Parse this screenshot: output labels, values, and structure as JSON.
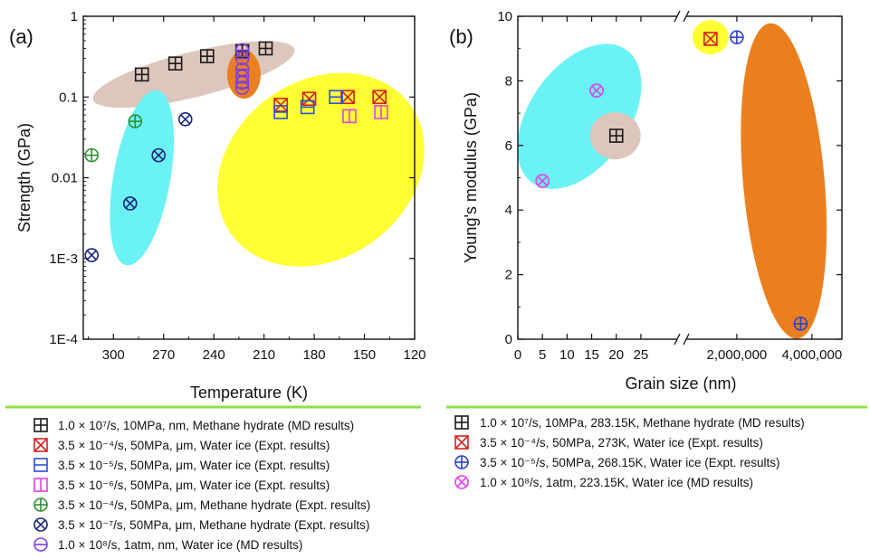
{
  "legend_a": [
    {
      "symbol": "box-plus",
      "color": "#1a1a1a",
      "text": "1.0 × 10⁷/s, 10MPa, nm, Methane hydrate (MD results)"
    },
    {
      "symbol": "box-x",
      "color": "#d61f1f",
      "text": "3.5 × 10⁻⁴/s, 50MPa, μm, Water ice (Expt. results)"
    },
    {
      "symbol": "box-hbar",
      "color": "#2a4fe0",
      "text": "3.5 × 10⁻⁵/s, 50MPa, μm, Water ice (Expt. results)"
    },
    {
      "symbol": "box-vbar",
      "color": "#e040e8",
      "text": "3.5 × 10⁻⁶/s, 50MPa, μm, Water ice (Expt. results)"
    },
    {
      "symbol": "circle-plus",
      "color": "#2f8c2f",
      "text": "3.5 × 10⁻⁴/s, 50MPa, μm, Methane hydrate (Expt. results)"
    },
    {
      "symbol": "circle-x",
      "color": "#1a237e",
      "text": "3.5 × 10⁻⁷/s, 50MPa, μm, Methane hydrate (Expt. results)"
    },
    {
      "symbol": "circle-minus",
      "color": "#7b3fe4",
      "text": "1.0 × 10⁸/s, 1atm, nm, Water ice (MD results)"
    }
  ],
  "legend_b": [
    {
      "symbol": "box-plus",
      "color": "#1a1a1a",
      "text": "1.0 × 10⁷/s, 10MPa, 283.15K, Methane hydrate (MD results)"
    },
    {
      "symbol": "box-x",
      "color": "#d61f1f",
      "text": "3.5 × 10⁻⁴/s, 50MPa, 273K, Water ice (Expt. results)"
    },
    {
      "symbol": "circle-plus",
      "color": "#2a3fd0",
      "text": "3.5 × 10⁻⁵/s, 50MPa, 268.15K, Water ice (Expt. results)"
    },
    {
      "symbol": "circle-x",
      "color": "#e040e8",
      "text": "1.0 × 10⁸/s, 1atm, 223.15K, Water ice (MD results)"
    }
  ],
  "chart_data": [
    {
      "panel_label": "(a)",
      "type": "scatter",
      "xlabel": "Temperature (K)",
      "ylabel": "Strength (GPa)",
      "x_reversed": true,
      "xlim": [
        318,
        120
      ],
      "x_ticks": [
        300,
        270,
        240,
        210,
        180,
        150,
        120
      ],
      "y_scale": "log",
      "ylim": [
        0.0001,
        1
      ],
      "y_ticks": [
        {
          "value": 0.0001,
          "label": "1E-4"
        },
        {
          "value": 0.001,
          "label": "1E-3"
        },
        {
          "value": 0.01,
          "label": "0.01"
        },
        {
          "value": 0.1,
          "label": "0.1"
        },
        {
          "value": 1,
          "label": "1"
        }
      ],
      "highlight_regions": [
        {
          "color": "#ddc6bc",
          "cx": 252,
          "cy_log": -0.72,
          "rx_x": 62,
          "ry_log": 0.28,
          "angle": -14
        },
        {
          "color": "#eb7f1e",
          "cx": 222,
          "cy_log": -0.72,
          "rx_x": 10,
          "ry_log": 0.3,
          "angle": 0
        },
        {
          "color": "#ffff33",
          "cx": 176,
          "cy_log": -1.9,
          "rx_x": 66,
          "ry_log": 1.1,
          "angle": -36
        },
        {
          "color": "#6af2f4",
          "cx": 283,
          "cy_log": -2.0,
          "rx_x": 17,
          "ry_log": 1.1,
          "angle": 10
        }
      ],
      "series": [
        {
          "symbol": "box-plus",
          "color": "#1a1a1a",
          "points": [
            [
              283,
              0.19
            ],
            [
              263,
              0.26
            ],
            [
              244,
              0.32
            ],
            [
              223,
              0.37
            ],
            [
              209,
              0.4
            ]
          ]
        },
        {
          "symbol": "box-x",
          "color": "#d61f1f",
          "points": [
            [
              200,
              0.08
            ],
            [
              183,
              0.095
            ],
            [
              160,
              0.1
            ],
            [
              141,
              0.1
            ]
          ]
        },
        {
          "symbol": "box-hbar",
          "color": "#2a4fe0",
          "points": [
            [
              200,
              0.065
            ],
            [
              184,
              0.075
            ],
            [
              167,
              0.1
            ]
          ]
        },
        {
          "symbol": "box-vbar",
          "color": "#e040e8",
          "points": [
            [
              159,
              0.058
            ],
            [
              140,
              0.065
            ]
          ]
        },
        {
          "symbol": "circle-plus",
          "color": "#2f8c2f",
          "points": [
            [
              313,
              0.019
            ],
            [
              287,
              0.05
            ]
          ]
        },
        {
          "symbol": "circle-x",
          "color": "#1a237e",
          "points": [
            [
              313,
              0.0011
            ],
            [
              290,
              0.0048
            ],
            [
              273,
              0.019
            ],
            [
              257,
              0.053
            ]
          ]
        },
        {
          "symbol": "circle-minus",
          "color": "#7b3fe4",
          "points": [
            [
              223,
              0.38
            ],
            [
              223,
              0.3
            ],
            [
              223,
              0.22
            ],
            [
              223,
              0.18
            ],
            [
              223,
              0.15
            ],
            [
              223,
              0.13
            ]
          ]
        }
      ]
    },
    {
      "panel_label": "(b)",
      "type": "scatter",
      "xlabel": "Grain size (nm)",
      "ylabel": "Young's modulus (GPa)",
      "x_scale": "broken",
      "x_segments": [
        {
          "range": [
            0,
            32
          ],
          "ticks": [
            0,
            5,
            10,
            15,
            20,
            25
          ]
        },
        {
          "range": [
            700000,
            4800000
          ],
          "ticks": [
            {
              "value": 2000000,
              "label": "2,000,000"
            },
            {
              "value": 4000000,
              "label": "4,000,000"
            }
          ]
        }
      ],
      "ylim": [
        0,
        10
      ],
      "y_ticks": [
        0,
        2,
        4,
        6,
        8,
        10
      ],
      "highlight_regions": [
        {
          "color": "#6af2f4",
          "x": 12.5,
          "y": 6.9,
          "rx_px": 55,
          "ry_px": 90,
          "angle": 35
        },
        {
          "color": "#ddc6bc",
          "x": 19.8,
          "y": 6.3,
          "rx_px": 28,
          "ry_px": 26,
          "angle": 0
        },
        {
          "color": "#ffff33",
          "x": 1300000,
          "y": 9.35,
          "rx_px": 20,
          "ry_px": 19,
          "angle": 0
        },
        {
          "color": "#eb7f1e",
          "x": 3250000,
          "y": 4.9,
          "rx_px": 45,
          "ry_px": 175,
          "angle": -5
        }
      ],
      "series": [
        {
          "symbol": "box-plus",
          "color": "#1a1a1a",
          "points": [
            [
              20,
              6.3
            ]
          ]
        },
        {
          "symbol": "box-x",
          "color": "#d61f1f",
          "points": [
            [
              1300000,
              9.3
            ]
          ]
        },
        {
          "symbol": "circle-plus",
          "color": "#2a3fd0",
          "points": [
            [
              2000000,
              9.35
            ],
            [
              3700000,
              0.48
            ]
          ]
        },
        {
          "symbol": "circle-x",
          "color": "#e040e8",
          "points": [
            [
              5,
              4.9
            ],
            [
              16,
              7.7
            ]
          ]
        }
      ]
    }
  ]
}
